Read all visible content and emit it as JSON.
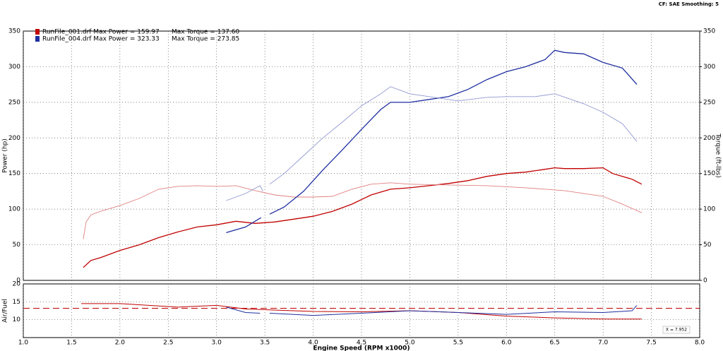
{
  "header": "CF: SAE  Smoothing: 5",
  "chart_data": [
    {
      "type": "line",
      "ylabel": "Power (hp)",
      "y2label": "Torque (ft-lbs)",
      "xlim": [
        1.0,
        8.0
      ],
      "xticks": [
        {
          "value": 1.0,
          "label": "1.0"
        },
        1.5,
        {
          "value": 2.0,
          "label": "2.0"
        },
        2.5,
        {
          "value": 3.0,
          "label": "3.0"
        },
        3.5,
        {
          "value": 4.0,
          "label": "4.0"
        },
        4.5,
        {
          "value": 5.0,
          "label": "5.0"
        },
        5.5,
        {
          "value": 6.0,
          "label": "6.0"
        },
        6.5,
        {
          "value": 7.0,
          "label": "7.0"
        },
        7.5,
        {
          "value": 8.0,
          "label": "8.0"
        }
      ],
      "ylim": [
        0,
        350
      ],
      "yticks": [
        0,
        50,
        100,
        150,
        200,
        250,
        300,
        350
      ],
      "y2lim": [
        0,
        350
      ],
      "y2ticks": [
        0,
        50,
        100,
        150,
        200,
        250,
        300,
        350
      ],
      "grid": true,
      "legend": [
        {
          "color": "#c00000",
          "text": "RunFile_001.drf Max Power = 159.97",
          "text2": "Max Torque = 137.60"
        },
        {
          "color": "#1f2fa0",
          "text": "RunFile_004.drf Max Power = 323.33",
          "text2": "Max Torque = 273.85"
        }
      ],
      "series": [
        {
          "color": "#c00000",
          "width": 1.3,
          "x": [
            1.62,
            1.7,
            1.8,
            2.0,
            2.2,
            2.4,
            2.6,
            2.8,
            3.0,
            3.2,
            3.4,
            3.6,
            3.8,
            4.0,
            4.2,
            4.4,
            4.6,
            4.8,
            5.0,
            5.2,
            5.4,
            5.6,
            5.8,
            6.0,
            6.2,
            6.4,
            6.5,
            6.6,
            6.8,
            7.0,
            7.1,
            7.3,
            7.4
          ],
          "values": [
            18,
            28,
            32,
            42,
            50,
            60,
            68,
            75,
            78,
            83,
            80,
            82,
            86,
            90,
            97,
            107,
            120,
            128,
            130,
            133,
            136,
            140,
            146,
            150,
            152,
            156,
            158,
            157,
            157,
            158,
            150,
            142,
            135
          ]
        },
        {
          "color": "#e08080",
          "width": 0.9,
          "axis": "y2",
          "x": [
            1.62,
            1.65,
            1.7,
            1.8,
            2.0,
            2.2,
            2.4,
            2.6,
            2.8,
            3.0,
            3.2,
            3.4,
            3.6,
            3.8,
            4.0,
            4.2,
            4.4,
            4.6,
            4.8,
            5.0,
            5.4,
            5.8,
            6.2,
            6.6,
            7.0,
            7.2,
            7.4
          ],
          "values": [
            58,
            82,
            92,
            97,
            105,
            115,
            128,
            132,
            133,
            132,
            133,
            126,
            120,
            117,
            117,
            118,
            128,
            135,
            137,
            135,
            134,
            133,
            130,
            126,
            118,
            107,
            95
          ]
        },
        {
          "color": "#1f2fa0",
          "width": 1.3,
          "x": [
            3.1,
            3.3,
            3.46,
            3.5,
            3.55,
            3.7,
            3.9,
            4.1,
            4.3,
            4.5,
            4.7,
            4.8,
            5.0,
            5.2,
            5.4,
            5.6,
            5.8,
            6.0,
            6.2,
            6.4,
            6.5,
            6.6,
            6.8,
            7.0,
            7.2,
            7.35
          ],
          "values": [
            67,
            75,
            88,
            null,
            93,
            103,
            125,
            155,
            183,
            212,
            240,
            250,
            250,
            254,
            258,
            268,
            282,
            293,
            300,
            310,
            323,
            320,
            318,
            306,
            298,
            275
          ]
        },
        {
          "color": "#9098d0",
          "width": 0.9,
          "axis": "y2",
          "x": [
            3.1,
            3.3,
            3.45,
            3.48,
            3.5,
            3.55,
            3.7,
            3.9,
            4.1,
            4.3,
            4.5,
            4.7,
            4.8,
            5.0,
            5.2,
            5.5,
            5.8,
            6.0,
            6.3,
            6.5,
            6.8,
            7.0,
            7.2,
            7.35
          ],
          "values": [
            112,
            122,
            133,
            125,
            null,
            135,
            150,
            175,
            200,
            222,
            245,
            262,
            272,
            262,
            258,
            252,
            257,
            258,
            258,
            262,
            248,
            236,
            220,
            195
          ]
        }
      ]
    },
    {
      "type": "line",
      "ylabel": "Air/Fuel",
      "xlabel": "Engine Speed (RPM x1000)",
      "xlim": [
        1.0,
        8.0
      ],
      "xticks": [
        {
          "value": 1.0,
          "label": "1.0"
        },
        1.5,
        {
          "value": 2.0,
          "label": "2.0"
        },
        2.5,
        {
          "value": 3.0,
          "label": "3.0"
        },
        3.5,
        {
          "value": 4.0,
          "label": "4.0"
        },
        4.5,
        {
          "value": 5.0,
          "label": "5.0"
        },
        5.5,
        {
          "value": 6.0,
          "label": "6.0"
        },
        6.5,
        {
          "value": 7.0,
          "label": "7.0"
        },
        7.5,
        {
          "value": 8.0,
          "label": "8.0"
        }
      ],
      "ylim": [
        5,
        20
      ],
      "yticks": [
        10,
        15,
        20
      ],
      "grid": true,
      "reference_line": {
        "value": 13.2,
        "color": "#c00000"
      },
      "annotation": "X = 7.952",
      "series": [
        {
          "color": "#c00000",
          "width": 1,
          "x": [
            1.6,
            2.0,
            2.3,
            2.6,
            3.0,
            3.3,
            3.5,
            4.0,
            4.5,
            5.0,
            5.5,
            6.0,
            6.5,
            7.0,
            7.4
          ],
          "values": [
            14.5,
            14.5,
            14,
            13.5,
            14,
            13,
            12.8,
            12.3,
            12.2,
            12.5,
            12,
            11,
            10.5,
            10.2,
            10.2
          ]
        },
        {
          "color": "#1f2fa0",
          "width": 1,
          "x": [
            3.1,
            3.3,
            3.45,
            3.5,
            3.55,
            4.0,
            4.5,
            5.0,
            5.5,
            6.0,
            6.5,
            7.0,
            7.3,
            7.35
          ],
          "values": [
            13.5,
            12,
            11.8,
            null,
            11.8,
            11.2,
            11.8,
            12.5,
            12,
            11.5,
            12.2,
            12,
            12.5,
            14
          ]
        }
      ]
    }
  ]
}
